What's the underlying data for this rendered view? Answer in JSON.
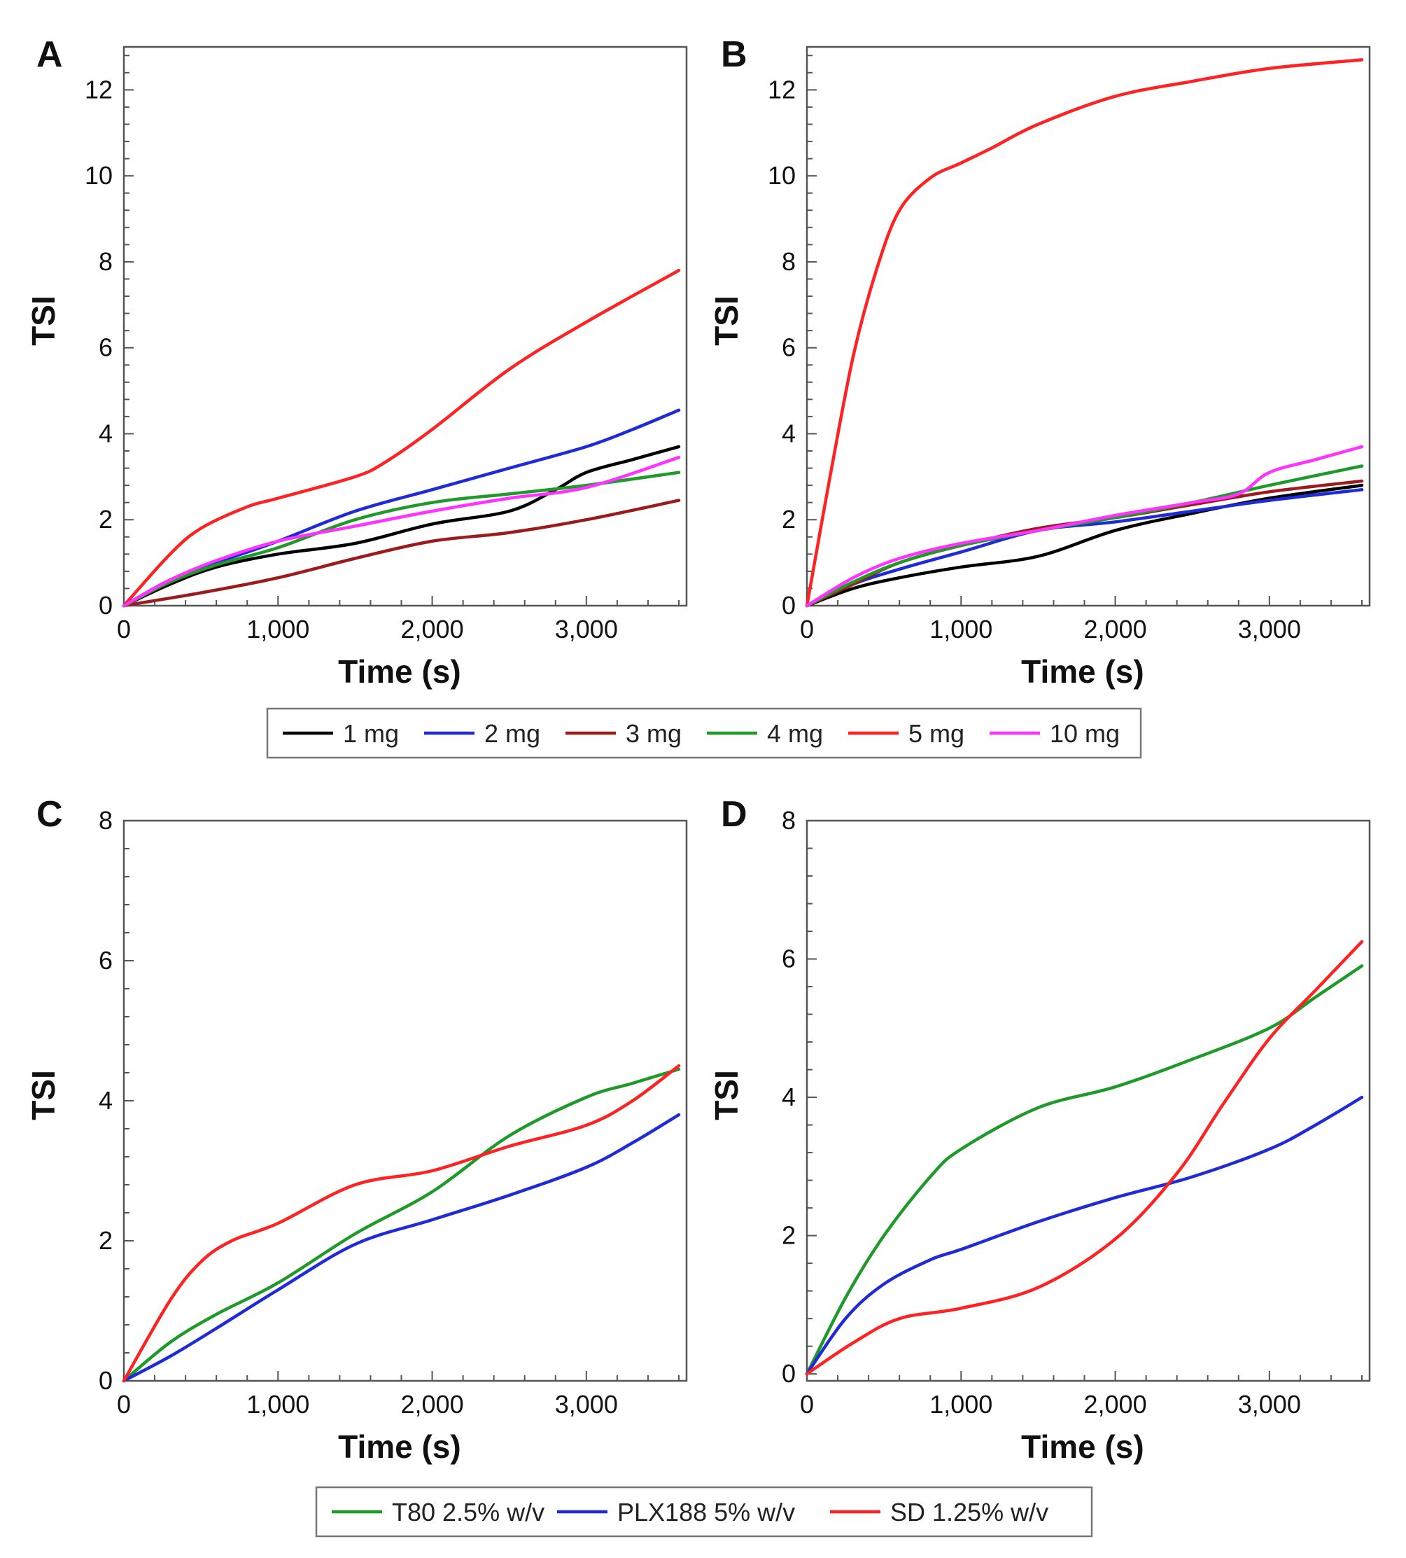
{
  "legend_top": {
    "entries": [
      {
        "label": "1 mg",
        "color": "#000000"
      },
      {
        "label": "2 mg",
        "color": "#1f2bd6"
      },
      {
        "label": "3 mg",
        "color": "#9b1c1c"
      },
      {
        "label": "4 mg",
        "color": "#1f9a2a"
      },
      {
        "label": "5 mg",
        "color": "#ff2222"
      },
      {
        "label": "10 mg",
        "color": "#ff33ff"
      }
    ]
  },
  "legend_bottom": {
    "entries": [
      {
        "label": "T80 2.5% w/v",
        "color": "#1f9a2a"
      },
      {
        "label": "PLX188 5% w/v",
        "color": "#1f2bd6"
      },
      {
        "label": "SD 1.25% w/v",
        "color": "#ff2222"
      }
    ]
  },
  "chart_data": [
    {
      "panel": "A",
      "type": "line",
      "xlabel": "Time (s)",
      "ylabel": "TSI",
      "xlim": [
        0,
        3650
      ],
      "ylim": [
        0,
        13
      ],
      "xticks": [
        0,
        1000,
        2000,
        3000
      ],
      "xtick_labels": [
        "0",
        "1,000",
        "2,000",
        "3,000"
      ],
      "yticks": [
        0,
        2,
        4,
        6,
        8,
        10,
        12
      ],
      "ytick_labels": [
        "0",
        "2",
        "4",
        "6",
        "8",
        "10",
        "12"
      ],
      "series": [
        {
          "name": "1 mg",
          "color": "#000000",
          "points": [
            [
              0,
              0
            ],
            [
              300,
              0.5
            ],
            [
              600,
              0.9
            ],
            [
              1000,
              1.2
            ],
            [
              1500,
              1.45
            ],
            [
              2000,
              1.9
            ],
            [
              2500,
              2.2
            ],
            [
              2800,
              2.7
            ],
            [
              3000,
              3.1
            ],
            [
              3300,
              3.4
            ],
            [
              3600,
              3.7
            ]
          ]
        },
        {
          "name": "2 mg",
          "color": "#1f2bd6",
          "points": [
            [
              0,
              0
            ],
            [
              300,
              0.6
            ],
            [
              600,
              1.0
            ],
            [
              1000,
              1.5
            ],
            [
              1500,
              2.2
            ],
            [
              2000,
              2.7
            ],
            [
              2500,
              3.2
            ],
            [
              3000,
              3.7
            ],
            [
              3300,
              4.1
            ],
            [
              3600,
              4.55
            ]
          ]
        },
        {
          "name": "3 mg",
          "color": "#9b1c1c",
          "points": [
            [
              0,
              0
            ],
            [
              500,
              0.3
            ],
            [
              1000,
              0.65
            ],
            [
              1500,
              1.1
            ],
            [
              2000,
              1.5
            ],
            [
              2500,
              1.7
            ],
            [
              3000,
              2.0
            ],
            [
              3600,
              2.45
            ]
          ]
        },
        {
          "name": "4 mg",
          "color": "#1f9a2a",
          "points": [
            [
              0,
              0
            ],
            [
              300,
              0.55
            ],
            [
              600,
              0.95
            ],
            [
              1000,
              1.35
            ],
            [
              1500,
              2.0
            ],
            [
              2000,
              2.4
            ],
            [
              2500,
              2.6
            ],
            [
              3000,
              2.8
            ],
            [
              3600,
              3.1
            ]
          ]
        },
        {
          "name": "5 mg",
          "color": "#ff2222",
          "points": [
            [
              0,
              0
            ],
            [
              300,
              1.2
            ],
            [
              500,
              1.8
            ],
            [
              800,
              2.3
            ],
            [
              1000,
              2.5
            ],
            [
              1500,
              3.0
            ],
            [
              1700,
              3.35
            ],
            [
              2000,
              4.1
            ],
            [
              2500,
              5.5
            ],
            [
              3000,
              6.6
            ],
            [
              3600,
              7.8
            ]
          ]
        },
        {
          "name": "10 mg",
          "color": "#ff33ff",
          "points": [
            [
              0,
              0
            ],
            [
              300,
              0.6
            ],
            [
              600,
              1.05
            ],
            [
              1000,
              1.5
            ],
            [
              1500,
              1.85
            ],
            [
              2000,
              2.2
            ],
            [
              2500,
              2.5
            ],
            [
              3000,
              2.75
            ],
            [
              3600,
              3.45
            ]
          ]
        }
      ]
    },
    {
      "panel": "B",
      "type": "line",
      "xlabel": "Time (s)",
      "ylabel": "TSI",
      "xlim": [
        0,
        3650
      ],
      "ylim": [
        0,
        13
      ],
      "xticks": [
        0,
        1000,
        2000,
        3000
      ],
      "xtick_labels": [
        "0",
        "1,000",
        "2,000",
        "3,000"
      ],
      "yticks": [
        0,
        2,
        4,
        6,
        8,
        10,
        12
      ],
      "ytick_labels": [
        "0",
        "2",
        "4",
        "6",
        "8",
        "10",
        "12"
      ],
      "series": [
        {
          "name": "1 mg",
          "color": "#000000",
          "points": [
            [
              0,
              0
            ],
            [
              300,
              0.4
            ],
            [
              600,
              0.65
            ],
            [
              1000,
              0.9
            ],
            [
              1500,
              1.15
            ],
            [
              2000,
              1.75
            ],
            [
              2500,
              2.15
            ],
            [
              3000,
              2.5
            ],
            [
              3600,
              2.8
            ]
          ]
        },
        {
          "name": "2 mg",
          "color": "#1f2bd6",
          "points": [
            [
              0,
              0
            ],
            [
              300,
              0.5
            ],
            [
              600,
              0.85
            ],
            [
              1000,
              1.25
            ],
            [
              1500,
              1.75
            ],
            [
              2000,
              1.95
            ],
            [
              2500,
              2.2
            ],
            [
              3000,
              2.45
            ],
            [
              3600,
              2.7
            ]
          ]
        },
        {
          "name": "3 mg",
          "color": "#9b1c1c",
          "points": [
            [
              0,
              0
            ],
            [
              300,
              0.5
            ],
            [
              600,
              1.0
            ],
            [
              1000,
              1.4
            ],
            [
              1500,
              1.8
            ],
            [
              2000,
              2.05
            ],
            [
              2500,
              2.35
            ],
            [
              3000,
              2.65
            ],
            [
              3600,
              2.9
            ]
          ]
        },
        {
          "name": "4 mg",
          "color": "#1f9a2a",
          "points": [
            [
              0,
              0
            ],
            [
              300,
              0.55
            ],
            [
              600,
              1.0
            ],
            [
              1000,
              1.4
            ],
            [
              1500,
              1.75
            ],
            [
              2000,
              2.05
            ],
            [
              2500,
              2.4
            ],
            [
              3000,
              2.8
            ],
            [
              3600,
              3.25
            ]
          ]
        },
        {
          "name": "5 mg",
          "color": "#ff2222",
          "points": [
            [
              0,
              0
            ],
            [
              150,
              3.0
            ],
            [
              300,
              5.8
            ],
            [
              450,
              7.8
            ],
            [
              600,
              9.2
            ],
            [
              800,
              9.95
            ],
            [
              1000,
              10.3
            ],
            [
              1200,
              10.65
            ],
            [
              1500,
              11.2
            ],
            [
              2000,
              11.85
            ],
            [
              2500,
              12.2
            ],
            [
              3000,
              12.5
            ],
            [
              3600,
              12.7
            ]
          ]
        },
        {
          "name": "10 mg",
          "color": "#ff33ff",
          "points": [
            [
              0,
              0
            ],
            [
              300,
              0.65
            ],
            [
              600,
              1.1
            ],
            [
              1000,
              1.45
            ],
            [
              1500,
              1.75
            ],
            [
              2000,
              2.1
            ],
            [
              2500,
              2.4
            ],
            [
              2800,
              2.6
            ],
            [
              3000,
              3.1
            ],
            [
              3300,
              3.4
            ],
            [
              3600,
              3.7
            ]
          ]
        }
      ]
    },
    {
      "panel": "C",
      "type": "line",
      "xlabel": "Time (s)",
      "ylabel": "TSI",
      "xlim": [
        0,
        3650
      ],
      "ylim": [
        0,
        8
      ],
      "xticks": [
        0,
        1000,
        2000,
        3000
      ],
      "xtick_labels": [
        "0",
        "1,000",
        "2,000",
        "3,000"
      ],
      "yticks": [
        0,
        2,
        4,
        6,
        8
      ],
      "ytick_labels": [
        "0",
        "2",
        "4",
        "6",
        "8"
      ],
      "series": [
        {
          "name": "T80 2.5% w/v",
          "color": "#1f9a2a",
          "points": [
            [
              0,
              0
            ],
            [
              300,
              0.55
            ],
            [
              600,
              0.95
            ],
            [
              1000,
              1.4
            ],
            [
              1500,
              2.1
            ],
            [
              2000,
              2.7
            ],
            [
              2500,
              3.5
            ],
            [
              3000,
              4.05
            ],
            [
              3300,
              4.25
            ],
            [
              3600,
              4.45
            ]
          ]
        },
        {
          "name": "PLX188 5% w/v",
          "color": "#1f2bd6",
          "points": [
            [
              0,
              0
            ],
            [
              300,
              0.35
            ],
            [
              600,
              0.75
            ],
            [
              1000,
              1.3
            ],
            [
              1500,
              1.95
            ],
            [
              2000,
              2.3
            ],
            [
              2500,
              2.65
            ],
            [
              3000,
              3.05
            ],
            [
              3300,
              3.4
            ],
            [
              3600,
              3.8
            ]
          ]
        },
        {
          "name": "SD 1.25% w/v",
          "color": "#ff2222",
          "points": [
            [
              0,
              0
            ],
            [
              300,
              1.15
            ],
            [
              500,
              1.7
            ],
            [
              700,
              2.0
            ],
            [
              1000,
              2.25
            ],
            [
              1500,
              2.8
            ],
            [
              2000,
              3.0
            ],
            [
              2500,
              3.35
            ],
            [
              3000,
              3.65
            ],
            [
              3300,
              4.0
            ],
            [
              3600,
              4.5
            ]
          ]
        }
      ]
    },
    {
      "panel": "D",
      "type": "line",
      "xlabel": "Time (s)",
      "ylabel": "TSI",
      "xlim": [
        0,
        3650
      ],
      "ylim": [
        -0.1,
        8
      ],
      "xticks": [
        0,
        1000,
        2000,
        3000
      ],
      "xtick_labels": [
        "0",
        "1,000",
        "2,000",
        "3,000"
      ],
      "yticks": [
        0,
        2,
        4,
        6,
        8
      ],
      "ytick_labels": [
        "0",
        "2",
        "4",
        "6",
        "8"
      ],
      "series": [
        {
          "name": "T80 2.5% w/v",
          "color": "#1f9a2a",
          "points": [
            [
              0,
              0
            ],
            [
              250,
              1.1
            ],
            [
              500,
              2.0
            ],
            [
              800,
              2.85
            ],
            [
              1000,
              3.25
            ],
            [
              1500,
              3.85
            ],
            [
              2000,
              4.15
            ],
            [
              2500,
              4.55
            ],
            [
              3000,
              5.0
            ],
            [
              3300,
              5.45
            ],
            [
              3600,
              5.9
            ]
          ]
        },
        {
          "name": "PLX188 5% w/v",
          "color": "#1f2bd6",
          "points": [
            [
              0,
              0
            ],
            [
              250,
              0.8
            ],
            [
              500,
              1.3
            ],
            [
              800,
              1.65
            ],
            [
              1000,
              1.8
            ],
            [
              1500,
              2.2
            ],
            [
              2000,
              2.55
            ],
            [
              2500,
              2.85
            ],
            [
              3000,
              3.25
            ],
            [
              3300,
              3.6
            ],
            [
              3600,
              4.0
            ]
          ]
        },
        {
          "name": "SD 1.25% w/v",
          "color": "#ff2222",
          "points": [
            [
              0,
              0
            ],
            [
              300,
              0.45
            ],
            [
              600,
              0.8
            ],
            [
              1000,
              0.95
            ],
            [
              1500,
              1.25
            ],
            [
              2000,
              1.95
            ],
            [
              2400,
              2.9
            ],
            [
              2700,
              3.9
            ],
            [
              3000,
              4.85
            ],
            [
              3300,
              5.55
            ],
            [
              3600,
              6.25
            ]
          ]
        }
      ]
    }
  ]
}
